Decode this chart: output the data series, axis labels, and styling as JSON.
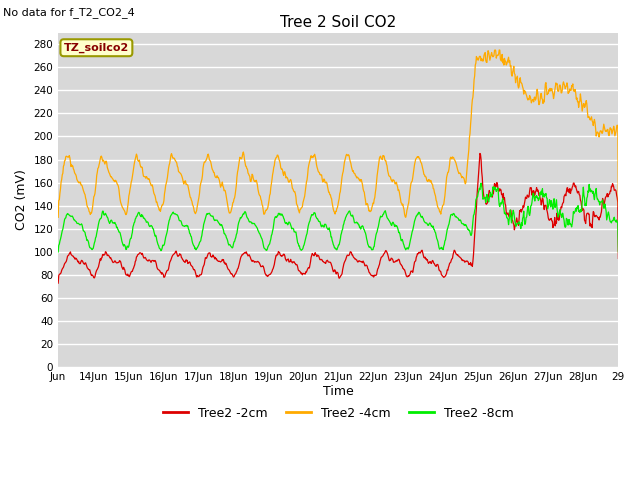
{
  "title": "Tree 2 Soil CO2",
  "subtitle": "No data for f_T2_CO2_4",
  "ylabel": "CO2 (mV)",
  "xlabel": "Time",
  "legend_label": "TZ_soilco2",
  "background_color": "#d8d8d8",
  "plot_bg_color": "#d8d8d8",
  "legend_bg": "#ffffcc",
  "legend_edge": "#999900",
  "ylim": [
    0,
    290
  ],
  "yticks": [
    0,
    20,
    40,
    60,
    80,
    100,
    120,
    140,
    160,
    180,
    200,
    220,
    240,
    260,
    280
  ],
  "line_colors": {
    "red": "#dd0000",
    "orange": "#ffaa00",
    "green": "#00ee00"
  },
  "legend_entries": [
    "Tree2 -2cm",
    "Tree2 -4cm",
    "Tree2 -8cm"
  ],
  "legend_colors": [
    "#dd0000",
    "#ffaa00",
    "#00ee00"
  ],
  "x_start": 13,
  "x_end": 29,
  "xtick_positions": [
    13,
    14,
    15,
    16,
    17,
    18,
    19,
    20,
    21,
    22,
    23,
    24,
    25,
    26,
    27,
    28,
    29
  ],
  "xtick_labels": [
    "Jun",
    "14Jun",
    "15Jun",
    "16Jun",
    "17Jun",
    "18Jun",
    "19Jun",
    "20Jun",
    "21Jun",
    "22Jun",
    "23Jun",
    "24Jun",
    "25Jun",
    "26Jun",
    "27Jun",
    "28Jun",
    "29"
  ]
}
